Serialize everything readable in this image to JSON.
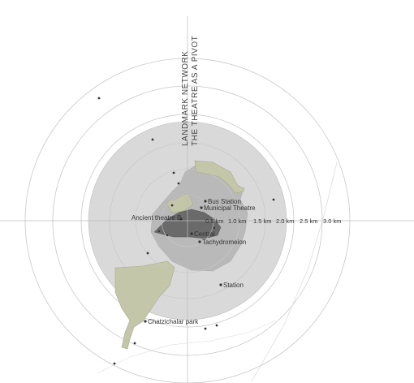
{
  "title": {
    "line1": "LANDMARK NETWORK",
    "line2": "THE THEATRE AS A PIVOT"
  },
  "distance_labels": [
    "0.5 km",
    "1.0 km",
    "1.5 km",
    "2.0 km",
    "2.5 km",
    "3.0 km"
  ],
  "landmarks": {
    "bus_station": "Bus Station",
    "municipal_theatre": "Municipal Theatre",
    "ancient_theatre": "Ancient theatre B",
    "central": "Central",
    "tachydromeion": "Tachydromeion",
    "station": "Station",
    "park": "Chatzichalar park"
  },
  "colors": {
    "inner_disc": "#d9d9d9",
    "urban_fabric": "#b9b9b9",
    "green_area": "#c3c6a8",
    "ring_stroke": "#bdbdbd",
    "dot": "#333333"
  }
}
